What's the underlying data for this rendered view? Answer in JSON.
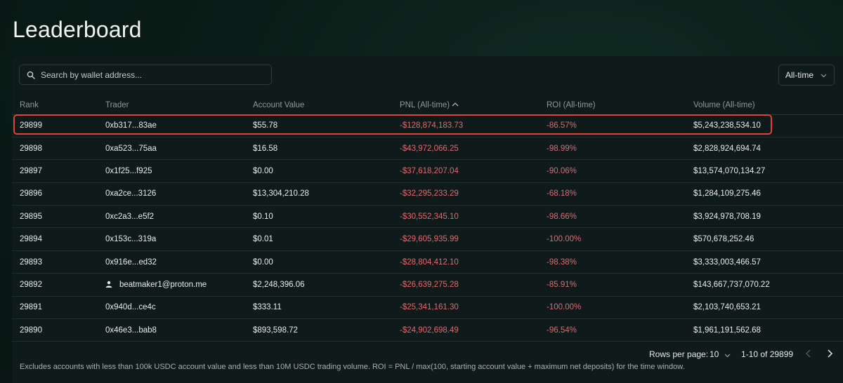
{
  "page": {
    "title": "Leaderboard"
  },
  "search": {
    "placeholder": "Search by wallet address..."
  },
  "timeframe": {
    "selected": "All-time"
  },
  "table": {
    "columns": {
      "rank": "Rank",
      "trader": "Trader",
      "account_value": "Account Value",
      "pnl": "PNL (All-time)",
      "roi": "ROI (All-time)",
      "volume": "Volume (All-time)"
    },
    "rows": [
      {
        "rank": "29899",
        "trader": "0xb317...83ae",
        "account_value": "$55.78",
        "pnl": "-$128,874,183.73",
        "roi": "-86.57%",
        "volume": "$5,243,238,534.10"
      },
      {
        "rank": "29898",
        "trader": "0xa523...75aa",
        "account_value": "$16.58",
        "pnl": "-$43,972,066.25",
        "roi": "-98.99%",
        "volume": "$2,828,924,694.74"
      },
      {
        "rank": "29897",
        "trader": "0x1f25...f925",
        "account_value": "$0.00",
        "pnl": "-$37,618,207.04",
        "roi": "-90.06%",
        "volume": "$13,574,070,134.27"
      },
      {
        "rank": "29896",
        "trader": "0xa2ce...3126",
        "account_value": "$13,304,210.28",
        "pnl": "-$32,295,233.29",
        "roi": "-68.18%",
        "volume": "$1,284,109,275.46"
      },
      {
        "rank": "29895",
        "trader": "0xc2a3...e5f2",
        "account_value": "$0.10",
        "pnl": "-$30,552,345.10",
        "roi": "-98.66%",
        "volume": "$3,924,978,708.19"
      },
      {
        "rank": "29894",
        "trader": "0x153c...319a",
        "account_value": "$0.01",
        "pnl": "-$29,605,935.99",
        "roi": "-100.00%",
        "volume": "$570,678,252.46"
      },
      {
        "rank": "29893",
        "trader": "0x916e...ed32",
        "account_value": "$0.00",
        "pnl": "-$28,804,412.10",
        "roi": "-98.38%",
        "volume": "$3,333,003,466.57"
      },
      {
        "rank": "29892",
        "trader": "beatmaker1@proton.me",
        "account_value": "$2,248,396.06",
        "pnl": "-$26,639,275.28",
        "roi": "-85.91%",
        "volume": "$143,667,737,070.22"
      },
      {
        "rank": "29891",
        "trader": "0x940d...ce4c",
        "account_value": "$333.11",
        "pnl": "-$25,341,161.30",
        "roi": "-100.00%",
        "volume": "$2,103,740,653.21"
      },
      {
        "rank": "29890",
        "trader": "0x46e3...bab8",
        "account_value": "$893,598.72",
        "pnl": "-$24,902,698.49",
        "roi": "-96.54%",
        "volume": "$1,961,191,562.68"
      }
    ]
  },
  "pagination": {
    "rows_per_page_label": "Rows per page:",
    "rows_per_page": "10",
    "range": "1-10 of 29899"
  },
  "footnote": "Excludes accounts with less than 100k USDC account value and less than 10M USDC trading volume. ROI = PNL / max(100, starting account value + maximum net deposits) for the time window.",
  "colors": {
    "negative": "#e5686d",
    "highlight": "#e0413a",
    "background": "#0a1c17"
  },
  "icons": {
    "search": "search-icon",
    "sort": "sort-ascending-icon",
    "user": "user-icon",
    "chevron": "chevron-down-icon"
  }
}
